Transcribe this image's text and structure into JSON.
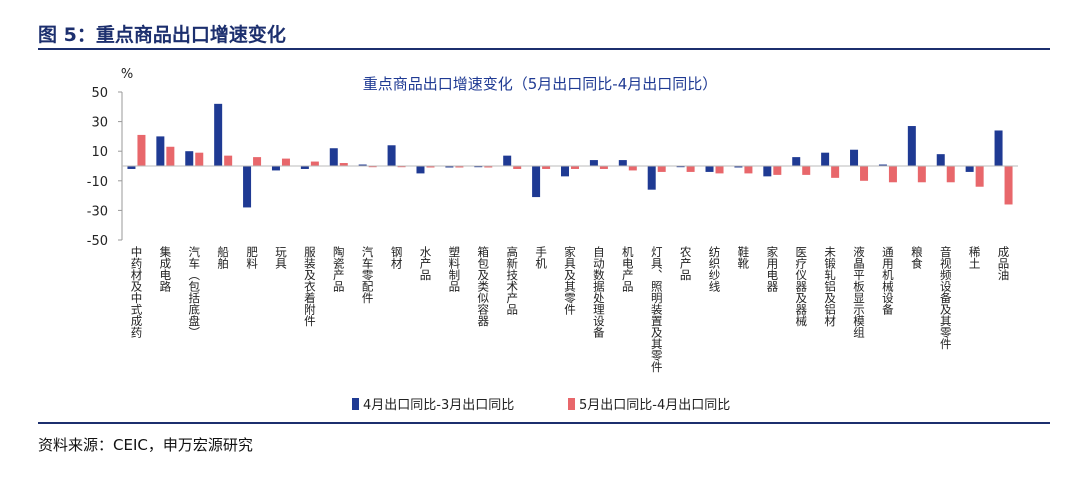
{
  "figure_title": "图 5：重点商品出口增速变化",
  "source": "资料来源：CEIC，申万宏源研究",
  "colors": {
    "series1": "#1f3a93",
    "series2": "#e8676b",
    "rule": "#1c2f6e"
  },
  "chart_data": {
    "type": "bar",
    "title": "重点商品出口增速变化（5月出口同比-4月出口同比）",
    "unit_label": "%",
    "xlabel": "",
    "ylabel": "",
    "ylim": [
      -50,
      50
    ],
    "yticks": [
      50,
      30,
      10,
      -10,
      -30,
      -50
    ],
    "grid": false,
    "legend": "bottom",
    "categories": [
      "中药材及中式成药",
      "集成电路",
      "汽车（包括底盘）",
      "船舶",
      "肥料",
      "玩具",
      "服装及衣着附件",
      "陶瓷产品",
      "汽车零配件",
      "钢材",
      "水产品",
      "塑料制品",
      "箱包及类似容器",
      "高新技术产品",
      "手机",
      "家具及其零件",
      "自动数据处理设备",
      "机电产品",
      "灯具、照明装置及其零件",
      "农产品",
      "纺织纱线",
      "鞋靴",
      "家用电器",
      "医疗仪器及器械",
      "未锻轧铝及铝材",
      "液晶平板显示模组",
      "通用机械设备",
      "粮食",
      "音视频设备及其零件",
      "稀土",
      "成品油"
    ],
    "series": [
      {
        "name": "4月出口同比-3月出口同比",
        "values": [
          -2,
          20,
          10,
          42,
          -28,
          -3,
          -2,
          12,
          1,
          14,
          -5,
          -1,
          0,
          7,
          -21,
          -7,
          4,
          4,
          -16,
          0,
          -4,
          -1,
          -7,
          6,
          9,
          11,
          1,
          27,
          8,
          -4,
          24
        ]
      },
      {
        "name": "5月出口同比-4月出口同比",
        "values": [
          21,
          13,
          9,
          7,
          6,
          5,
          3,
          2,
          0,
          0,
          -1,
          -1,
          -1,
          -2,
          -2,
          -2,
          -2,
          -3,
          -4,
          -4,
          -5,
          -5,
          -6,
          -6,
          -8,
          -10,
          -11,
          -11,
          -11,
          -14,
          -26
        ]
      }
    ]
  }
}
